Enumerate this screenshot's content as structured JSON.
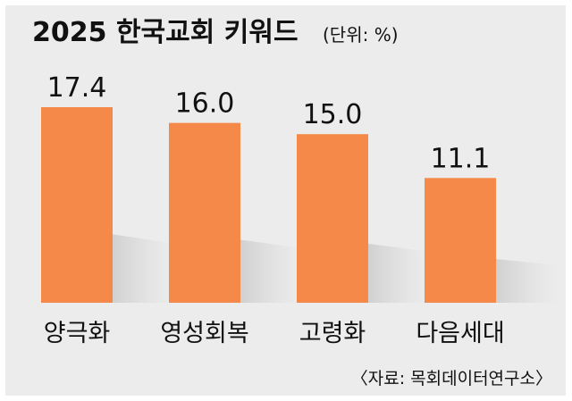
{
  "chart_data": {
    "type": "bar",
    "title": "2025 한국교회 키워드",
    "unit": "(단위: %)",
    "categories": [
      "양극화",
      "영성회복",
      "고령화",
      "다음세대"
    ],
    "values": [
      17.4,
      16.0,
      15.0,
      11.1
    ],
    "value_labels": [
      "17.4",
      "16.0",
      "15.0",
      "11.1"
    ],
    "ylim": [
      0,
      17.4
    ],
    "grid": false,
    "legend": "none",
    "source": "〈자료: 목회데이터연구소〉",
    "colors": {
      "bar": "#f5894a",
      "shadow": "#cfcfcf",
      "background": "#ececec",
      "text": "#111111"
    }
  }
}
